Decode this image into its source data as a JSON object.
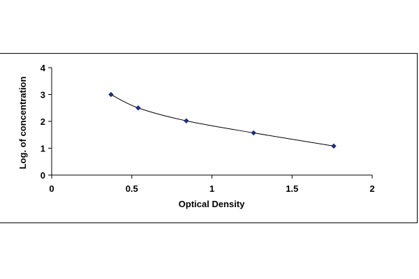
{
  "chart_data": {
    "type": "scatter",
    "title": "",
    "xlabel": "Optical Density",
    "ylabel": "Log. of concentration",
    "xlim": [
      0,
      2
    ],
    "ylim": [
      0,
      4
    ],
    "xticks": [
      "0",
      "0.5",
      "1",
      "1.5",
      "2"
    ],
    "yticks": [
      "0",
      "1",
      "2",
      "3",
      "4"
    ],
    "grid": false,
    "legend": "none",
    "trendline": "smooth curve through points",
    "series": [
      {
        "points": [
          {
            "x": 0.37,
            "y": 3.0
          },
          {
            "x": 0.54,
            "y": 2.5
          },
          {
            "x": 0.84,
            "y": 2.02
          },
          {
            "x": 1.26,
            "y": 1.57
          },
          {
            "x": 1.76,
            "y": 1.08
          }
        ],
        "marker_color": "#1f2f7a",
        "line_color": "#000000"
      }
    ]
  }
}
